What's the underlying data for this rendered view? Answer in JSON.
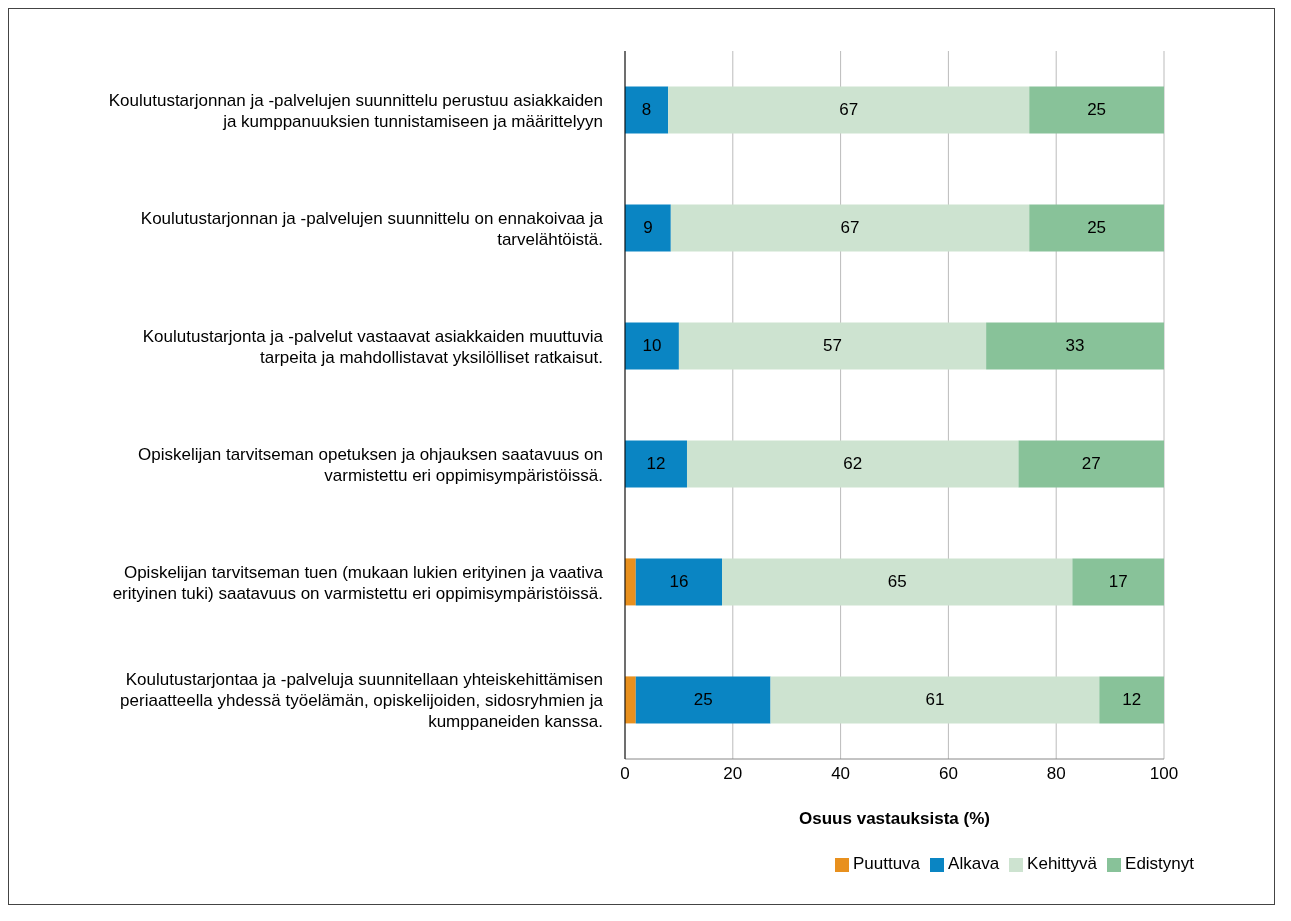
{
  "chart_data": {
    "type": "bar",
    "orientation": "horizontal",
    "stacked": true,
    "categories": [
      "Koulutustarjonnan ja -palvelujen suunnittelu perustuu asiakkaiden ja kumppanuuksien tunnistamiseen ja määrittelyyn",
      "Koulutustarjonnan ja -palvelujen suunnittelu on ennakoivaa ja tarvelähtöistä.",
      "Koulutustarjonta ja -palvelut vastaavat asiakkaiden muuttuvia tarpeita ja mahdollistavat yksilölliset ratkaisut.",
      "Opiskelijan tarvitseman opetuksen ja ohjauksen saatavuus on varmistettu eri oppimisympäristöissä.",
      "Opiskelijan tarvitseman tuen (mukaan lukien erityinen ja vaativa erityinen tuki) saatavuus on varmistettu eri oppimisympäristöissä.",
      "Koulutustarjontaa ja -palveluja suunnitellaan yhteiskehittämisen periaatteella yhdessä työelämän, opiskelijoiden, sidosryhmien ja kumppaneiden kanssa."
    ],
    "series": [
      {
        "name": "Puuttuva",
        "color": "#e8901e",
        "values": [
          null,
          null,
          null,
          null,
          2,
          2
        ]
      },
      {
        "name": "Alkava",
        "color": "#0a85c3",
        "values": [
          8,
          8.5,
          10,
          11.5,
          16,
          25
        ],
        "value_labels": [
          "8",
          "9",
          "10",
          "12",
          "16",
          "25"
        ]
      },
      {
        "name": "Kehittyvä",
        "color": "#cde3d0",
        "values": [
          67,
          66.5,
          57,
          61.5,
          65,
          61
        ],
        "value_labels": [
          "67",
          "67",
          "57",
          "62",
          "65",
          "61"
        ]
      },
      {
        "name": "Edistynyt",
        "color": "#88c299",
        "values": [
          25,
          25,
          33,
          27,
          17,
          12
        ],
        "value_labels": [
          "25",
          "25",
          "33",
          "27",
          "17",
          "12"
        ]
      }
    ],
    "xlim": [
      0,
      100
    ],
    "xticks": [
      0,
      20,
      40,
      60,
      80,
      100
    ],
    "xlabel": "Osuus vastauksista (%)",
    "grid": "x",
    "legend": "bottom"
  }
}
